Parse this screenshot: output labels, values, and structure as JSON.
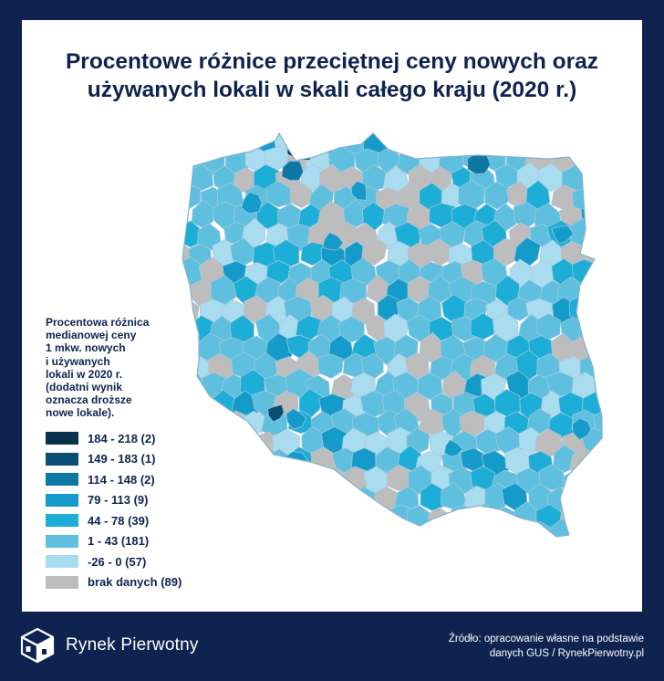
{
  "title": {
    "line1": "Procentowe różnice przeciętnej ceny nowych oraz",
    "line2": "używanych lokali w skali całego kraju (2020 r.)"
  },
  "legend": {
    "description": [
      "Procentowa różnica",
      "medianowej ceny",
      "1 mkw. nowych",
      "i używanych",
      "lokali w 2020 r.",
      "(dodatni wynik",
      "oznacza droższe",
      "nowe lokale)."
    ],
    "classes": [
      {
        "label": "184 - 218 (2)",
        "color": "#08314a"
      },
      {
        "label": "149 - 183 (1)",
        "color": "#0a4f73"
      },
      {
        "label": "114 - 148 (2)",
        "color": "#0e78a4"
      },
      {
        "label": "79 - 113 (9)",
        "color": "#149bc9"
      },
      {
        "label": "44 - 78 (39)",
        "color": "#1caed6"
      },
      {
        "label": "1 - 43 (181)",
        "color": "#5ec0de"
      },
      {
        "label": "-26 - 0 (57)",
        "color": "#aadcef"
      },
      {
        "label": "brak danych (89)",
        "color": "#bdbdbd"
      }
    ]
  },
  "footer": {
    "brand": "Rynek Pierwotny",
    "source_line1": "Źródło: opracowanie własne na podstawie",
    "source_line2": "danych GUS / RynekPierwotny.pl"
  }
}
